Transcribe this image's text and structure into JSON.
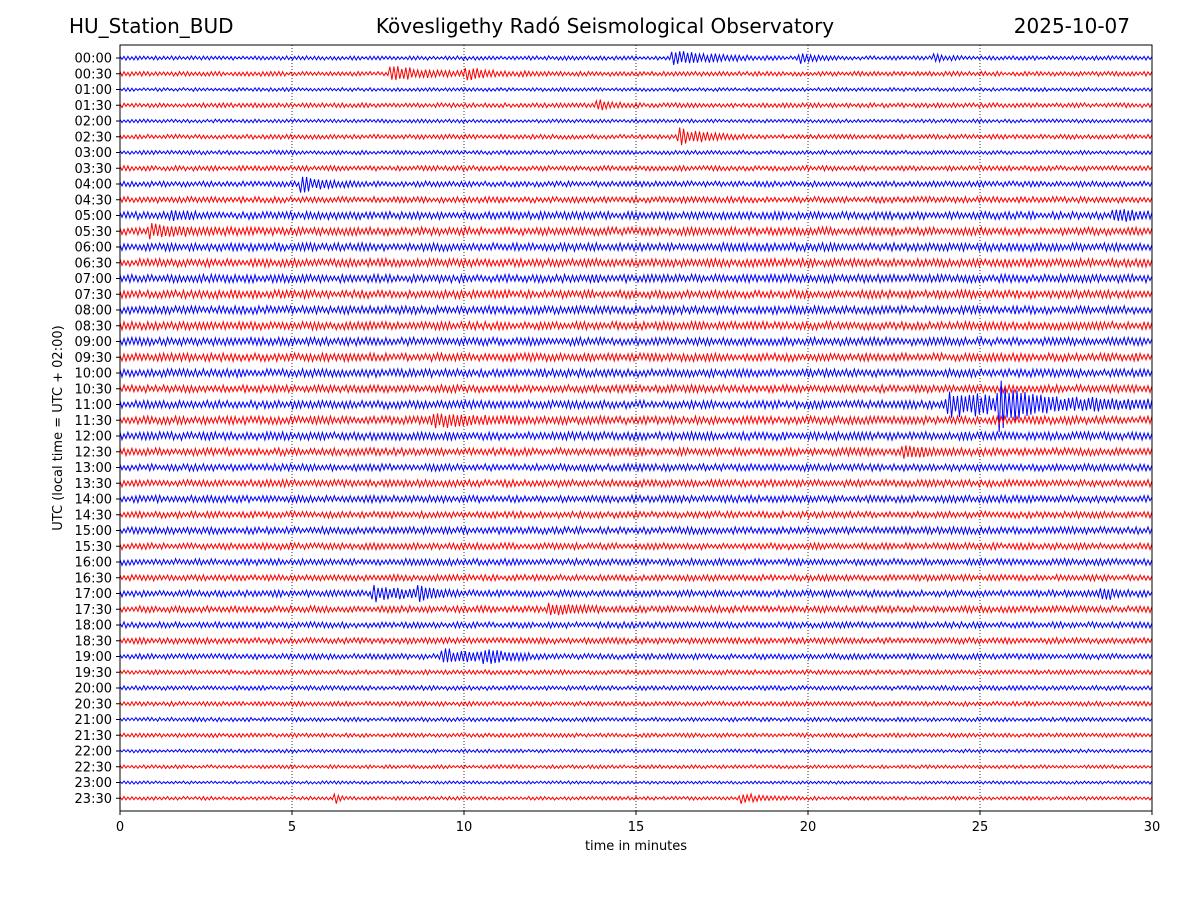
{
  "header": {
    "station": "HU_Station_BUD",
    "observatory": "Kövesligethy Radó Seismological Observatory",
    "date": "2025-10-07"
  },
  "chart_data": {
    "type": "line",
    "title": "Kövesligethy Radó Seismological Observatory",
    "xlabel": "time in minutes",
    "ylabel": "UTC (local time = UTC + 02:00)",
    "xlim": [
      0,
      30
    ],
    "x_ticks": [
      0,
      5,
      10,
      15,
      20,
      25,
      30
    ],
    "grid": "vertical dotted at x ticks",
    "colors": [
      "#0000ff",
      "#ff0000"
    ],
    "row_labels": [
      "00:00",
      "00:30",
      "01:00",
      "01:30",
      "02:00",
      "02:30",
      "03:00",
      "03:30",
      "04:00",
      "04:30",
      "05:00",
      "05:30",
      "06:00",
      "06:30",
      "07:00",
      "07:30",
      "08:00",
      "08:30",
      "09:00",
      "09:30",
      "10:00",
      "10:30",
      "11:00",
      "11:30",
      "12:00",
      "12:30",
      "13:00",
      "13:30",
      "14:00",
      "14:30",
      "15:00",
      "15:30",
      "16:00",
      "16:30",
      "17:00",
      "17:30",
      "18:00",
      "18:30",
      "19:00",
      "19:30",
      "20:00",
      "20:30",
      "21:00",
      "21:30",
      "22:00",
      "22:30",
      "23:00",
      "23:30"
    ],
    "noise_level": [
      0.8,
      0.9,
      0.7,
      0.9,
      0.7,
      0.9,
      0.8,
      1.0,
      1.1,
      1.2,
      1.5,
      1.6,
      1.6,
      1.6,
      1.6,
      1.6,
      1.6,
      1.6,
      1.6,
      1.6,
      1.6,
      1.5,
      1.6,
      1.6,
      1.6,
      1.5,
      1.4,
      1.4,
      1.4,
      1.3,
      1.4,
      1.3,
      1.3,
      1.2,
      1.3,
      1.3,
      1.2,
      1.2,
      1.1,
      0.9,
      0.9,
      0.9,
      0.8,
      0.8,
      0.7,
      0.7,
      0.6,
      0.7
    ],
    "events": [
      {
        "row": 0,
        "t": 16.0,
        "amp": 2.2,
        "dur": 1.5
      },
      {
        "row": 0,
        "t": 19.7,
        "amp": 1.8,
        "dur": 0.5
      },
      {
        "row": 0,
        "t": 23.6,
        "amp": 1.5,
        "dur": 0.4
      },
      {
        "row": 1,
        "t": 7.8,
        "amp": 2.5,
        "dur": 1.3
      },
      {
        "row": 1,
        "t": 10.0,
        "amp": 1.6,
        "dur": 1.0
      },
      {
        "row": 3,
        "t": 13.8,
        "amp": 1.8,
        "dur": 0.6
      },
      {
        "row": 5,
        "t": 16.2,
        "amp": 2.6,
        "dur": 1.0
      },
      {
        "row": 8,
        "t": 5.2,
        "amp": 2.5,
        "dur": 0.8
      },
      {
        "row": 10,
        "t": 1.4,
        "amp": 1.5,
        "dur": 0.5
      },
      {
        "row": 10,
        "t": 28.8,
        "amp": 1.5,
        "dur": 1.0
      },
      {
        "row": 11,
        "t": 0.8,
        "amp": 1.8,
        "dur": 1.2
      },
      {
        "row": 22,
        "t": 24.0,
        "amp": 3.2,
        "dur": 5.0
      },
      {
        "row": 22,
        "t": 25.5,
        "amp": 6.0,
        "dur": 0.7
      },
      {
        "row": 23,
        "t": 9.0,
        "amp": 2.0,
        "dur": 1.3
      },
      {
        "row": 25,
        "t": 22.7,
        "amp": 1.9,
        "dur": 0.6
      },
      {
        "row": 34,
        "t": 7.3,
        "amp": 2.5,
        "dur": 1.0
      },
      {
        "row": 34,
        "t": 8.6,
        "amp": 2.0,
        "dur": 0.6
      },
      {
        "row": 34,
        "t": 28.5,
        "amp": 2.0,
        "dur": 0.5
      },
      {
        "row": 35,
        "t": 12.4,
        "amp": 1.6,
        "dur": 1.0
      },
      {
        "row": 38,
        "t": 9.3,
        "amp": 2.4,
        "dur": 1.2
      },
      {
        "row": 38,
        "t": 10.5,
        "amp": 2.0,
        "dur": 0.8
      },
      {
        "row": 47,
        "t": 6.2,
        "amp": 2.3,
        "dur": 0.15
      },
      {
        "row": 47,
        "t": 18.0,
        "amp": 1.6,
        "dur": 0.8
      }
    ]
  }
}
